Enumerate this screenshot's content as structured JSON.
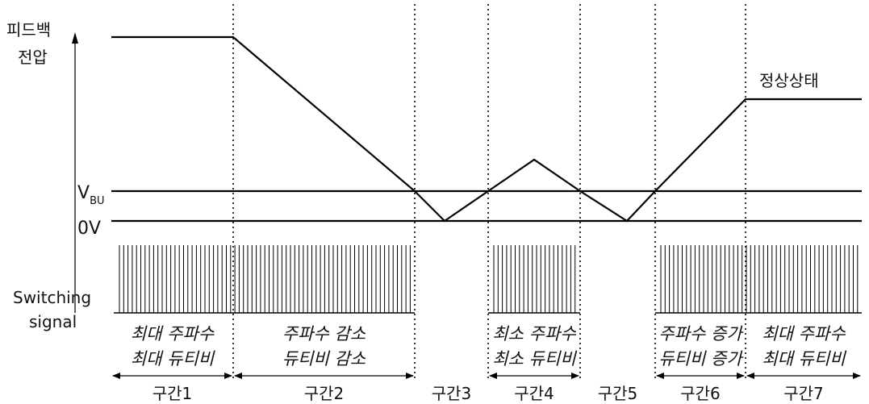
{
  "y_axis": {
    "label_line1": "피드백",
    "label_line2": "전압"
  },
  "levels": {
    "vbu_main": "V",
    "vbu_sub": "BU",
    "zero": "0V"
  },
  "steady_state_label": "정상상태",
  "switching_label": {
    "line1": "Switching",
    "line2": "signal"
  },
  "sections": [
    {
      "name": "구간1",
      "desc": [
        "최대 주파수",
        "최대 듀티비"
      ]
    },
    {
      "name": "구간2",
      "desc": [
        "주파수 감소",
        "듀티비 감소"
      ]
    },
    {
      "name": "구간3",
      "desc": []
    },
    {
      "name": "구간4",
      "desc": [
        "최소 주파수",
        "최소 듀티비"
      ]
    },
    {
      "name": "구간5",
      "desc": []
    },
    {
      "name": "구간6",
      "desc": [
        "주파수 증가",
        "듀티비 증가"
      ]
    },
    {
      "name": "구간7",
      "desc": [
        "최대 주파수",
        "최대 듀티비"
      ]
    }
  ]
}
